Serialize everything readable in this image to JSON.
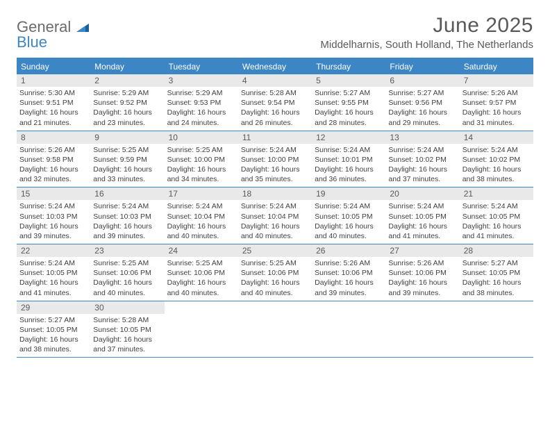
{
  "logo": {
    "word1": "General",
    "word2": "Blue"
  },
  "title": "June 2025",
  "location": "Middelharnis, South Holland, The Netherlands",
  "colors": {
    "accent": "#3d86c6",
    "daynum_bg": "#e9e9e9",
    "text": "#595959",
    "body_text": "#404040"
  },
  "typography": {
    "title_fontsize": 30,
    "location_fontsize": 15,
    "dow_fontsize": 12,
    "daynum_fontsize": 12,
    "body_fontsize": 10.5
  },
  "days_of_week": [
    "Sunday",
    "Monday",
    "Tuesday",
    "Wednesday",
    "Thursday",
    "Friday",
    "Saturday"
  ],
  "weeks": [
    [
      {
        "n": "1",
        "sunrise": "Sunrise: 5:30 AM",
        "sunset": "Sunset: 9:51 PM",
        "day1": "Daylight: 16 hours",
        "day2": "and 21 minutes."
      },
      {
        "n": "2",
        "sunrise": "Sunrise: 5:29 AM",
        "sunset": "Sunset: 9:52 PM",
        "day1": "Daylight: 16 hours",
        "day2": "and 23 minutes."
      },
      {
        "n": "3",
        "sunrise": "Sunrise: 5:29 AM",
        "sunset": "Sunset: 9:53 PM",
        "day1": "Daylight: 16 hours",
        "day2": "and 24 minutes."
      },
      {
        "n": "4",
        "sunrise": "Sunrise: 5:28 AM",
        "sunset": "Sunset: 9:54 PM",
        "day1": "Daylight: 16 hours",
        "day2": "and 26 minutes."
      },
      {
        "n": "5",
        "sunrise": "Sunrise: 5:27 AM",
        "sunset": "Sunset: 9:55 PM",
        "day1": "Daylight: 16 hours",
        "day2": "and 28 minutes."
      },
      {
        "n": "6",
        "sunrise": "Sunrise: 5:27 AM",
        "sunset": "Sunset: 9:56 PM",
        "day1": "Daylight: 16 hours",
        "day2": "and 29 minutes."
      },
      {
        "n": "7",
        "sunrise": "Sunrise: 5:26 AM",
        "sunset": "Sunset: 9:57 PM",
        "day1": "Daylight: 16 hours",
        "day2": "and 31 minutes."
      }
    ],
    [
      {
        "n": "8",
        "sunrise": "Sunrise: 5:26 AM",
        "sunset": "Sunset: 9:58 PM",
        "day1": "Daylight: 16 hours",
        "day2": "and 32 minutes."
      },
      {
        "n": "9",
        "sunrise": "Sunrise: 5:25 AM",
        "sunset": "Sunset: 9:59 PM",
        "day1": "Daylight: 16 hours",
        "day2": "and 33 minutes."
      },
      {
        "n": "10",
        "sunrise": "Sunrise: 5:25 AM",
        "sunset": "Sunset: 10:00 PM",
        "day1": "Daylight: 16 hours",
        "day2": "and 34 minutes."
      },
      {
        "n": "11",
        "sunrise": "Sunrise: 5:24 AM",
        "sunset": "Sunset: 10:00 PM",
        "day1": "Daylight: 16 hours",
        "day2": "and 35 minutes."
      },
      {
        "n": "12",
        "sunrise": "Sunrise: 5:24 AM",
        "sunset": "Sunset: 10:01 PM",
        "day1": "Daylight: 16 hours",
        "day2": "and 36 minutes."
      },
      {
        "n": "13",
        "sunrise": "Sunrise: 5:24 AM",
        "sunset": "Sunset: 10:02 PM",
        "day1": "Daylight: 16 hours",
        "day2": "and 37 minutes."
      },
      {
        "n": "14",
        "sunrise": "Sunrise: 5:24 AM",
        "sunset": "Sunset: 10:02 PM",
        "day1": "Daylight: 16 hours",
        "day2": "and 38 minutes."
      }
    ],
    [
      {
        "n": "15",
        "sunrise": "Sunrise: 5:24 AM",
        "sunset": "Sunset: 10:03 PM",
        "day1": "Daylight: 16 hours",
        "day2": "and 39 minutes."
      },
      {
        "n": "16",
        "sunrise": "Sunrise: 5:24 AM",
        "sunset": "Sunset: 10:03 PM",
        "day1": "Daylight: 16 hours",
        "day2": "and 39 minutes."
      },
      {
        "n": "17",
        "sunrise": "Sunrise: 5:24 AM",
        "sunset": "Sunset: 10:04 PM",
        "day1": "Daylight: 16 hours",
        "day2": "and 40 minutes."
      },
      {
        "n": "18",
        "sunrise": "Sunrise: 5:24 AM",
        "sunset": "Sunset: 10:04 PM",
        "day1": "Daylight: 16 hours",
        "day2": "and 40 minutes."
      },
      {
        "n": "19",
        "sunrise": "Sunrise: 5:24 AM",
        "sunset": "Sunset: 10:05 PM",
        "day1": "Daylight: 16 hours",
        "day2": "and 40 minutes."
      },
      {
        "n": "20",
        "sunrise": "Sunrise: 5:24 AM",
        "sunset": "Sunset: 10:05 PM",
        "day1": "Daylight: 16 hours",
        "day2": "and 41 minutes."
      },
      {
        "n": "21",
        "sunrise": "Sunrise: 5:24 AM",
        "sunset": "Sunset: 10:05 PM",
        "day1": "Daylight: 16 hours",
        "day2": "and 41 minutes."
      }
    ],
    [
      {
        "n": "22",
        "sunrise": "Sunrise: 5:24 AM",
        "sunset": "Sunset: 10:05 PM",
        "day1": "Daylight: 16 hours",
        "day2": "and 41 minutes."
      },
      {
        "n": "23",
        "sunrise": "Sunrise: 5:25 AM",
        "sunset": "Sunset: 10:06 PM",
        "day1": "Daylight: 16 hours",
        "day2": "and 40 minutes."
      },
      {
        "n": "24",
        "sunrise": "Sunrise: 5:25 AM",
        "sunset": "Sunset: 10:06 PM",
        "day1": "Daylight: 16 hours",
        "day2": "and 40 minutes."
      },
      {
        "n": "25",
        "sunrise": "Sunrise: 5:25 AM",
        "sunset": "Sunset: 10:06 PM",
        "day1": "Daylight: 16 hours",
        "day2": "and 40 minutes."
      },
      {
        "n": "26",
        "sunrise": "Sunrise: 5:26 AM",
        "sunset": "Sunset: 10:06 PM",
        "day1": "Daylight: 16 hours",
        "day2": "and 39 minutes."
      },
      {
        "n": "27",
        "sunrise": "Sunrise: 5:26 AM",
        "sunset": "Sunset: 10:06 PM",
        "day1": "Daylight: 16 hours",
        "day2": "and 39 minutes."
      },
      {
        "n": "28",
        "sunrise": "Sunrise: 5:27 AM",
        "sunset": "Sunset: 10:05 PM",
        "day1": "Daylight: 16 hours",
        "day2": "and 38 minutes."
      }
    ],
    [
      {
        "n": "29",
        "sunrise": "Sunrise: 5:27 AM",
        "sunset": "Sunset: 10:05 PM",
        "day1": "Daylight: 16 hours",
        "day2": "and 38 minutes."
      },
      {
        "n": "30",
        "sunrise": "Sunrise: 5:28 AM",
        "sunset": "Sunset: 10:05 PM",
        "day1": "Daylight: 16 hours",
        "day2": "and 37 minutes."
      },
      {
        "empty": true
      },
      {
        "empty": true
      },
      {
        "empty": true
      },
      {
        "empty": true
      },
      {
        "empty": true
      }
    ]
  ]
}
